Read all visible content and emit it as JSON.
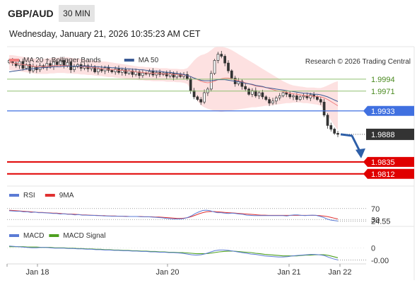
{
  "header": {
    "symbol": "GBP/AUD",
    "timeframe": "30 MIN",
    "datetime": "Wednesday, January 21, 2026 10:35:23 AM CET",
    "credit": "Research © 2026 Trading Central"
  },
  "colors": {
    "bollinger_band": "#fddcdc",
    "ma20": "#f08080",
    "ma50": "#3a5a95",
    "bull_candle": "#ffffff",
    "bear_candle": "#333333",
    "resistance": "#8fc070",
    "pivot": "#4070e0",
    "support": "#e00000",
    "current_price_tag": "#333333",
    "forecast_arrow": "#2e5fa8",
    "rsi": "#5b7bd5",
    "rsi_ma": "#e03030",
    "macd": "#5b7bd5",
    "macd_signal": "#4ea020"
  },
  "chart_data": [
    {
      "type": "candlestick",
      "legend": [
        {
          "label": "MA 20 + Bollinger Bands",
          "color": "#f08080"
        },
        {
          "label": "MA 50",
          "color": "#3a5a95"
        }
      ],
      "x_ticks": [
        "Jan 18",
        "Jan 20",
        "Jan 21",
        "Jan 22"
      ],
      "ylim": [
        1.979,
        2.0055
      ],
      "levels": [
        {
          "label": "1.9994",
          "value": 1.9994,
          "role": "resistance"
        },
        {
          "label": "1.9971",
          "value": 1.9971,
          "role": "resistance"
        },
        {
          "label": "1.9933",
          "value": 1.9933,
          "role": "pivot"
        },
        {
          "label": "1.9888",
          "value": 1.9888,
          "role": "current"
        },
        {
          "label": "1.9835",
          "value": 1.9835,
          "role": "support"
        },
        {
          "label": "1.9812",
          "value": 1.9812,
          "role": "support"
        }
      ],
      "close": [
        2.003,
        2.0025,
        2.002,
        2.0028,
        2.0015,
        2.0022,
        2.001,
        2.0018,
        2.0012,
        2.002,
        2.0016,
        2.0024,
        2.0018,
        2.0027,
        2.0022,
        2.003,
        2.002,
        2.0026,
        2.0012,
        2.0018,
        2.0022,
        2.0015,
        2.002,
        2.0014,
        2.0018,
        2.0008,
        2.0014,
        2.001,
        2.0016,
        2.0011,
        2.0008,
        2.0014,
        2.0007,
        2.0012,
        2.0005,
        2.001,
        2.0003,
        2.0008,
        2.0001,
        2.0006,
        2.0004,
        2.0009,
        2.0002,
        2.0007,
        2.0003,
        2.0006,
        2.0,
        2.0005,
        1.9998,
        2.0004,
        1.9999,
        2.0003,
        1.9995,
        1.9972,
        1.996,
        1.9955,
        1.995,
        1.9968,
        1.9975,
        2.0005,
        2.003,
        2.0042,
        2.0038,
        2.0025,
        2.001,
        1.9996,
        1.9985,
        1.999,
        1.998,
        1.9975,
        1.9965,
        1.9972,
        1.9962,
        1.9968,
        1.996,
        1.9955,
        1.9948,
        1.9952,
        1.9958,
        1.9962,
        1.9968,
        1.9965,
        1.996,
        1.9962,
        1.9955,
        1.996,
        1.9962,
        1.9958,
        1.9964,
        1.996,
        1.9955,
        1.995,
        1.9925,
        1.9905,
        1.9898,
        1.989,
        1.9888
      ],
      "ma20": [
        2.0026,
        2.0025,
        2.0024,
        2.0023,
        2.0022,
        2.0021,
        2.002,
        2.0019,
        2.0018,
        2.0018,
        2.0018,
        2.0019,
        2.0019,
        2.002,
        2.002,
        2.002,
        2.002,
        2.002,
        2.0019,
        2.0019,
        2.0019,
        2.0018,
        2.0018,
        2.0017,
        2.0017,
        2.0016,
        2.0015,
        2.0014,
        2.0014,
        2.0013,
        2.0012,
        2.0012,
        2.0011,
        2.0011,
        2.001,
        2.001,
        2.0009,
        2.0008,
        2.0007,
        2.0007,
        2.0006,
        2.0006,
        2.0005,
        2.0005,
        2.0005,
        2.0004,
        2.0004,
        2.0004,
        2.0003,
        2.0003,
        2.0002,
        2.0002,
        2.0001,
        1.9999,
        1.9996,
        1.9993,
        1.999,
        1.9988,
        1.9987,
        1.9988,
        1.999,
        1.9993,
        1.9995,
        1.9996,
        1.9996,
        1.9995,
        1.9993,
        1.9991,
        1.9989,
        1.9987,
        1.9985,
        1.9983,
        1.9981,
        1.998,
        1.9979,
        1.9978,
        1.9976,
        1.9974,
        1.9972,
        1.9971,
        1.997,
        1.9969,
        1.9967,
        1.9966,
        1.9965,
        1.9964,
        1.9963,
        1.9962,
        1.9962,
        1.9961,
        1.9961,
        1.996,
        1.9958,
        1.9955,
        1.9951,
        1.9947,
        1.9943
      ],
      "bb_upper": [
        2.004,
        2.004,
        2.0039,
        2.0038,
        2.0037,
        2.0036,
        2.0035,
        2.0034,
        2.0033,
        2.0033,
        2.0033,
        2.0034,
        2.0034,
        2.0035,
        2.0035,
        2.0036,
        2.0036,
        2.0036,
        2.0035,
        2.0034,
        2.0034,
        2.0033,
        2.0032,
        2.0031,
        2.003,
        2.003,
        2.0029,
        2.0028,
        2.0028,
        2.0027,
        2.0026,
        2.0025,
        2.0024,
        2.0023,
        2.0022,
        2.0021,
        2.002,
        2.0019,
        2.0018,
        2.0018,
        2.0017,
        2.0017,
        2.0016,
        2.0016,
        2.0015,
        2.0015,
        2.0015,
        2.0014,
        2.0014,
        2.0014,
        2.0013,
        2.0013,
        2.0015,
        2.0022,
        2.003,
        2.0036,
        2.004,
        2.0042,
        2.0045,
        2.005,
        2.0055,
        2.0056,
        2.0056,
        2.0055,
        2.0053,
        2.005,
        2.0046,
        2.0042,
        2.0038,
        2.0034,
        2.003,
        2.0026,
        2.0022,
        2.0018,
        2.0014,
        2.001,
        2.0006,
        2.0002,
        1.9998,
        1.9994,
        1.999,
        1.9987,
        1.9984,
        1.9982,
        1.9981,
        1.998,
        1.9979,
        1.9978,
        1.9978,
        1.9978,
        1.9977,
        1.9977,
        1.9979,
        1.9982,
        1.9985,
        1.9988,
        1.999
      ],
      "bb_lower": [
        2.0012,
        2.0011,
        2.001,
        2.0009,
        2.0008,
        2.0007,
        2.0006,
        2.0005,
        2.0004,
        2.0004,
        2.0004,
        2.0004,
        2.0005,
        2.0005,
        2.0006,
        2.0006,
        2.0006,
        2.0005,
        2.0005,
        2.0004,
        2.0004,
        2.0003,
        2.0003,
        2.0002,
        2.0002,
        2.0001,
        2.0,
        2.0,
        1.9999,
        1.9998,
        1.9998,
        1.9997,
        1.9996,
        1.9996,
        1.9995,
        1.9994,
        1.9993,
        1.9993,
        1.9992,
        1.9992,
        1.9991,
        1.9991,
        1.999,
        1.999,
        1.999,
        1.999,
        1.9989,
        1.9989,
        1.9989,
        1.9988,
        1.9988,
        1.9987,
        1.9985,
        1.9975,
        1.9963,
        1.9952,
        1.9944,
        1.994,
        1.9937,
        1.9935,
        1.9933,
        1.9932,
        1.9931,
        1.9932,
        1.9933,
        1.9934,
        1.9935,
        1.9936,
        1.9937,
        1.9938,
        1.9939,
        1.994,
        1.994,
        1.9941,
        1.9942,
        1.9943,
        1.9943,
        1.9944,
        1.9945,
        1.9946,
        1.9947,
        1.9948,
        1.9948,
        1.9949,
        1.9949,
        1.9949,
        1.9948,
        1.9948,
        1.9947,
        1.9946,
        1.9945,
        1.9943,
        1.9935,
        1.9925,
        1.9915,
        1.9905,
        1.9896
      ],
      "ma50": [
        2.0008,
        2.0009,
        2.001,
        2.0011,
        2.0012,
        2.0013,
        2.0014,
        2.0014,
        2.0015,
        2.0016,
        2.0016,
        2.0017,
        2.0017,
        2.0018,
        2.0018,
        2.0018,
        2.0019,
        2.0019,
        2.0019,
        2.0019,
        2.0019,
        2.0019,
        2.0019,
        2.0019,
        2.0018,
        2.0018,
        2.0018,
        2.0017,
        2.0017,
        2.0017,
        2.0016,
        2.0016,
        2.0015,
        2.0015,
        2.0014,
        2.0014,
        2.0013,
        2.0013,
        2.0012,
        2.0012,
        2.0011,
        2.001,
        2.001,
        2.0009,
        2.0009,
        2.0008,
        2.0007,
        2.0007,
        2.0006,
        2.0005,
        2.0004,
        2.0003,
        2.0001,
        1.9999,
        1.9996,
        1.9994,
        1.9992,
        1.9991,
        1.9991,
        1.9991,
        1.9992,
        1.9993,
        1.9993,
        1.9993,
        1.9992,
        1.9991,
        1.999,
        1.9989,
        1.9988,
        1.9986,
        1.9985,
        1.9984,
        1.9982,
        1.9981,
        1.998,
        1.9978,
        1.9977,
        1.9976,
        1.9975,
        1.9974,
        1.9973,
        1.9972,
        1.9971,
        1.997,
        1.9969,
        1.9968,
        1.9967,
        1.9967,
        1.9966,
        1.9965,
        1.9965,
        1.9964,
        1.9962,
        1.996,
        1.9957,
        1.9954,
        1.9951
      ]
    },
    {
      "type": "line",
      "name": "RSI",
      "legend": [
        {
          "label": "RSI",
          "color": "#5b7bd5"
        },
        {
          "label": "9MA",
          "color": "#e03030"
        }
      ],
      "ticks": [
        "70",
        "30"
      ],
      "current_label": "24.55",
      "ylim": [
        10,
        90
      ],
      "rsi": [
        62,
        61,
        60,
        60,
        58,
        58,
        56,
        57,
        55,
        55,
        54,
        53,
        52,
        52,
        50,
        51,
        49,
        49,
        47,
        48,
        46,
        46,
        45,
        45,
        44,
        44,
        43,
        43,
        42,
        42,
        42,
        42,
        41,
        41,
        41,
        41,
        40,
        40,
        40,
        39,
        38,
        37,
        36,
        34,
        33,
        32,
        32,
        32,
        34,
        38,
        44,
        52,
        58,
        63,
        64,
        62,
        58,
        55,
        55,
        53,
        52,
        53,
        52,
        50,
        49,
        46,
        45,
        44,
        44,
        44,
        44,
        44,
        44,
        44,
        44,
        44,
        43,
        45,
        47,
        47,
        45,
        44,
        45,
        46,
        45,
        42,
        38,
        32,
        28,
        26,
        24.55
      ],
      "ma9": [
        64,
        63,
        62,
        61,
        60,
        59,
        58,
        57,
        56,
        56,
        55,
        54,
        53,
        53,
        52,
        51,
        50,
        50,
        49,
        48,
        47,
        47,
        46,
        45,
        45,
        44,
        44,
        43,
        43,
        43,
        42,
        42,
        42,
        41,
        41,
        41,
        41,
        40,
        40,
        40,
        39,
        39,
        38,
        37,
        36,
        35,
        34,
        34,
        35,
        37,
        41,
        46,
        51,
        55,
        58,
        59,
        59,
        58,
        57,
        56,
        55,
        54,
        53,
        52,
        51,
        50,
        49,
        48,
        47,
        46,
        46,
        45,
        45,
        45,
        45,
        45,
        45,
        45,
        45,
        45,
        45,
        45,
        45,
        45,
        45,
        44,
        43,
        41,
        38,
        35,
        32
      ]
    },
    {
      "type": "line",
      "name": "MACD",
      "legend": [
        {
          "label": "MACD",
          "color": "#5b7bd5"
        },
        {
          "label": "MACD Signal",
          "color": "#4ea020"
        }
      ],
      "ticks": [
        "0"
      ],
      "current_label": "-0.00",
      "ylim": [
        -0.004,
        0.0014
      ],
      "macd": [
        0.0005,
        0.0004,
        0.0003,
        0.0002,
        0.0001,
        0.0,
        0.0,
        0.0001,
        0.0001,
        0.0,
        -0.0001,
        -0.0001,
        -0.0001,
        -0.0002,
        -0.0002,
        -0.0003,
        -0.0003,
        -0.0004,
        -0.0004,
        -0.0005,
        -0.0005,
        -0.0006,
        -0.0006,
        -0.0007,
        -0.0007,
        -0.0008,
        -0.0008,
        -0.0009,
        -0.0009,
        -0.001,
        -0.001,
        -0.0011,
        -0.0011,
        -0.0012,
        -0.0012,
        -0.0013,
        -0.0013,
        -0.0014,
        -0.0015,
        -0.0017,
        -0.0019,
        -0.002,
        -0.0019,
        -0.0016,
        -0.0012,
        -0.0008,
        -0.0006,
        -0.0006,
        -0.0007,
        -0.0009,
        -0.0011,
        -0.0013,
        -0.0015,
        -0.0017,
        -0.0018,
        -0.002,
        -0.0022,
        -0.0023,
        -0.0024,
        -0.0025,
        -0.0025,
        -0.0024,
        -0.0022,
        -0.0021,
        -0.002,
        -0.0019,
        -0.0018,
        -0.0018,
        -0.0019,
        -0.0021,
        -0.0026,
        -0.003,
        -0.0033
      ],
      "signal": [
        0.0003,
        0.0003,
        0.0003,
        0.0003,
        0.0002,
        0.0002,
        0.0002,
        0.0001,
        0.0001,
        0.0001,
        0.0,
        0.0,
        0.0,
        -0.0001,
        -0.0001,
        -0.0002,
        -0.0002,
        -0.0003,
        -0.0003,
        -0.0004,
        -0.0004,
        -0.0005,
        -0.0005,
        -0.0006,
        -0.0006,
        -0.0007,
        -0.0007,
        -0.0008,
        -0.0008,
        -0.0009,
        -0.0009,
        -0.001,
        -0.001,
        -0.0011,
        -0.0011,
        -0.0012,
        -0.0012,
        -0.0013,
        -0.0013,
        -0.0014,
        -0.0015,
        -0.0016,
        -0.0016,
        -0.0016,
        -0.0015,
        -0.0013,
        -0.0011,
        -0.001,
        -0.0009,
        -0.0009,
        -0.001,
        -0.0011,
        -0.0012,
        -0.0013,
        -0.0015,
        -0.0016,
        -0.0018,
        -0.0019,
        -0.002,
        -0.0021,
        -0.0022,
        -0.0022,
        -0.0022,
        -0.0022,
        -0.0021,
        -0.002,
        -0.002,
        -0.0019,
        -0.0019,
        -0.0019,
        -0.0021,
        -0.0024,
        -0.0027
      ]
    }
  ]
}
